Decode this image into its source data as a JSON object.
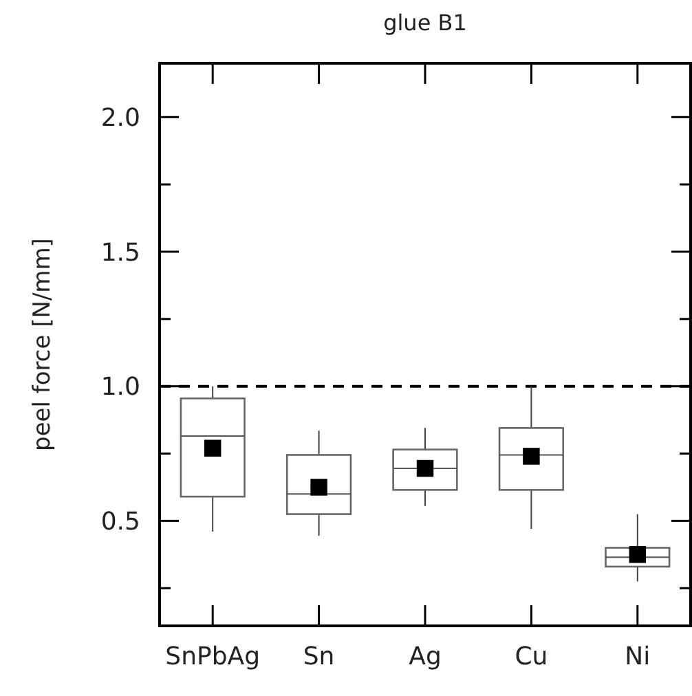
{
  "chart_data": {
    "type": "box",
    "title": "glue B1",
    "ylabel": "peel force [N/mm]",
    "categories": [
      "SnPbAg",
      "Sn",
      "Ag",
      "Cu",
      "Ni"
    ],
    "boxes": [
      {
        "low": 0.46,
        "q1": 0.59,
        "median": 0.815,
        "q3": 0.955,
        "high": 1.0
      },
      {
        "low": 0.445,
        "q1": 0.525,
        "median": 0.6,
        "q3": 0.745,
        "high": 0.835
      },
      {
        "low": 0.555,
        "q1": 0.615,
        "median": 0.695,
        "q3": 0.765,
        "high": 0.845
      },
      {
        "low": 0.47,
        "q1": 0.615,
        "median": 0.745,
        "q3": 0.845,
        "high": 1.0
      },
      {
        "low": 0.275,
        "q1": 0.33,
        "median": 0.365,
        "q3": 0.4,
        "high": 0.525
      }
    ],
    "series": [
      {
        "type": "scatter",
        "x": [
          "SnPbAg",
          "Sn",
          "Ag",
          "Cu",
          "Ni"
        ],
        "values": [
          0.77,
          0.625,
          0.695,
          0.74,
          0.375
        ],
        "color": "#000000",
        "marker": "square"
      }
    ],
    "ylim": [
      0.11,
      2.2
    ],
    "yticks": [
      {
        "value": 0.25,
        "label": null
      },
      0.5,
      {
        "value": 0.75,
        "label": null
      },
      {
        "value": 1,
        "label": "1.0"
      },
      {
        "value": 1.25,
        "label": null
      },
      1.5,
      {
        "value": 1.75,
        "label": null
      },
      {
        "value": 2,
        "label": "2.0"
      }
    ],
    "ref_lines": [
      {
        "axis": "y",
        "value": 1.0,
        "line_style": "dashed",
        "color": "#000000"
      }
    ],
    "grid": false
  }
}
